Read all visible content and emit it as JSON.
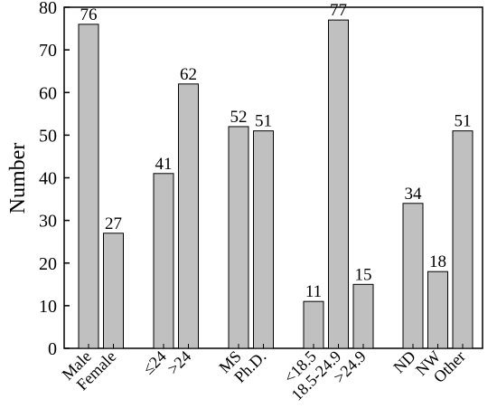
{
  "chart_data": {
    "type": "bar",
    "title": "",
    "xlabel": "",
    "ylabel": "Number",
    "ylim": [
      0,
      80
    ],
    "yticks": [
      0,
      10,
      20,
      30,
      40,
      50,
      60,
      70,
      80
    ],
    "bar_color": "#c0c0c0",
    "grid": false,
    "legend": "none",
    "categories": [
      "Male",
      "Female",
      "≤24",
      ">24",
      "MS",
      "Ph.D.",
      "<18.5",
      "18.5-24.9",
      ">24.9",
      "ND",
      "NW",
      "Other"
    ],
    "groups": [
      [
        "Male",
        "Female"
      ],
      [
        "≤24",
        ">24"
      ],
      [
        "MS",
        "Ph.D."
      ],
      [
        "<18.5",
        "18.5-24.9",
        ">24.9"
      ],
      [
        "ND",
        "NW",
        "Other"
      ]
    ],
    "values": [
      76,
      27,
      41,
      62,
      52,
      51,
      11,
      77,
      15,
      34,
      18,
      51
    ]
  }
}
